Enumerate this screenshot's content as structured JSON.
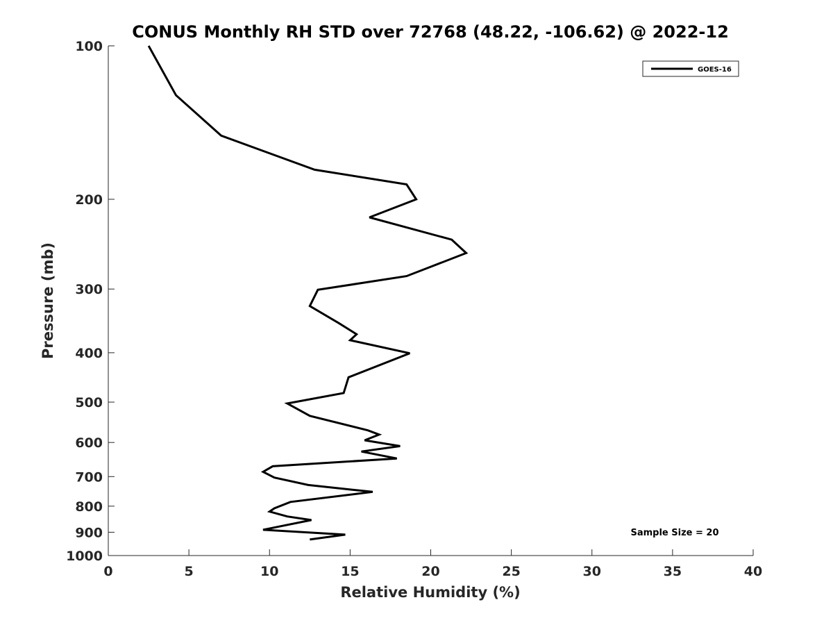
{
  "chart_data": {
    "type": "line",
    "title": "CONUS Monthly RH STD over 72768 (48.22, -106.62) @ 2022-12",
    "xlabel": "Relative Humidity (%)",
    "ylabel": "Pressure (mb)",
    "xlim": [
      0,
      40
    ],
    "ylim": [
      100,
      1000
    ],
    "y_scale": "log",
    "y_reversed": true,
    "xticks": [
      0,
      5,
      10,
      15,
      20,
      25,
      30,
      35,
      40
    ],
    "yticks": [
      100,
      200,
      300,
      400,
      500,
      600,
      700,
      800,
      900,
      1000
    ],
    "grid": false,
    "legend_position": "top-right",
    "series": [
      {
        "name": "GOES-16",
        "color": "#000000",
        "points": [
          [
            2.5,
            100
          ],
          [
            4.2,
            125
          ],
          [
            7.0,
            150
          ],
          [
            12.8,
            175
          ],
          [
            18.5,
            187
          ],
          [
            19.1,
            200
          ],
          [
            16.2,
            217
          ],
          [
            21.3,
            240
          ],
          [
            22.2,
            255
          ],
          [
            18.5,
            283
          ],
          [
            13.0,
            301
          ],
          [
            12.5,
            324
          ],
          [
            14.3,
            350
          ],
          [
            15.4,
            368
          ],
          [
            15.0,
            378
          ],
          [
            18.7,
            401
          ],
          [
            14.9,
            447
          ],
          [
            14.6,
            480
          ],
          [
            11.1,
            503
          ],
          [
            12.5,
            532
          ],
          [
            16.1,
            568
          ],
          [
            16.8,
            579
          ],
          [
            15.9,
            594
          ],
          [
            18.1,
            610
          ],
          [
            15.7,
            625
          ],
          [
            17.9,
            645
          ],
          [
            10.2,
            668
          ],
          [
            9.6,
            685
          ],
          [
            10.3,
            703
          ],
          [
            12.4,
            727
          ],
          [
            16.4,
            750
          ],
          [
            11.3,
            785
          ],
          [
            10.3,
            808
          ],
          [
            10.0,
            820
          ],
          [
            11.1,
            838
          ],
          [
            12.6,
            852
          ],
          [
            10.6,
            877
          ],
          [
            9.6,
            890
          ],
          [
            14.7,
            910
          ],
          [
            12.5,
            930
          ]
        ]
      }
    ],
    "annotations": [
      "Sample Size = 20"
    ]
  },
  "legend": {
    "entries": [
      "GOES-16"
    ]
  },
  "note": "Sample Size = 20"
}
